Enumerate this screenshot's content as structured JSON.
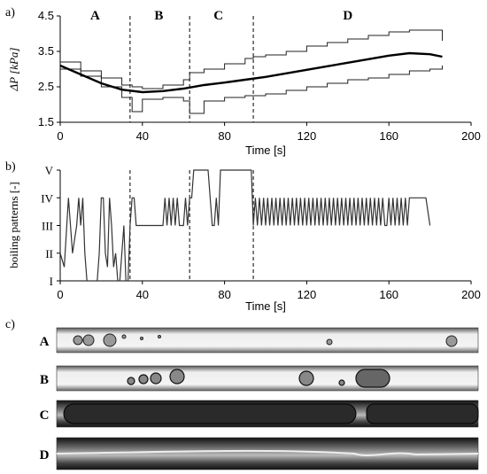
{
  "chart_data": [
    {
      "panel_label": "a)",
      "type": "line",
      "xlabel": "Time [s]",
      "ylabel": "ΔP [kPa]",
      "xlim": [
        0,
        200
      ],
      "ylim": [
        1.5,
        4.5
      ],
      "x_ticks": [
        "0",
        "40",
        "80",
        "120",
        "160",
        "200"
      ],
      "y_ticks": [
        "1.5",
        "2.5",
        "3.5",
        "4.5"
      ],
      "x_tick_values": [
        0,
        40,
        80,
        120,
        160,
        200
      ],
      "y_tick_values": [
        1.5,
        2.5,
        3.5,
        4.5
      ],
      "regions": [
        {
          "label": "A",
          "x_center": 17
        },
        {
          "label": "B",
          "x_center": 48
        },
        {
          "label": "C",
          "x_center": 77
        },
        {
          "label": "D",
          "x_center": 140
        }
      ],
      "boundaries": [
        34,
        63,
        94
      ],
      "mean": {
        "x": [
          0,
          10,
          20,
          30,
          40,
          50,
          60,
          70,
          80,
          90,
          100,
          110,
          120,
          130,
          140,
          150,
          160,
          170,
          180,
          186
        ],
        "y": [
          3.1,
          2.85,
          2.6,
          2.42,
          2.35,
          2.38,
          2.45,
          2.55,
          2.62,
          2.7,
          2.78,
          2.88,
          2.98,
          3.08,
          3.18,
          3.28,
          3.38,
          3.45,
          3.42,
          3.35
        ]
      },
      "upper_envelope": {
        "x": [
          0,
          10,
          20,
          30,
          35,
          40,
          50,
          60,
          63,
          70,
          80,
          90,
          94,
          100,
          110,
          120,
          130,
          140,
          150,
          160,
          170,
          180,
          186
        ],
        "y": [
          3.2,
          2.95,
          2.75,
          2.55,
          2.5,
          2.45,
          2.55,
          2.7,
          2.9,
          3.0,
          3.15,
          3.3,
          3.35,
          3.4,
          3.5,
          3.65,
          3.75,
          3.85,
          3.95,
          4.05,
          4.1,
          4.1,
          3.8
        ]
      },
      "lower_envelope": {
        "x": [
          0,
          10,
          20,
          30,
          35,
          40,
          50,
          60,
          63,
          70,
          80,
          90,
          94,
          100,
          110,
          120,
          130,
          140,
          150,
          160,
          170,
          180,
          186
        ],
        "y": [
          3.0,
          2.8,
          2.5,
          2.2,
          1.8,
          2.15,
          2.2,
          2.1,
          1.75,
          2.1,
          2.2,
          2.25,
          2.25,
          2.3,
          2.4,
          2.5,
          2.6,
          2.7,
          2.75,
          2.85,
          2.95,
          3.0,
          3.1
        ]
      }
    },
    {
      "panel_label": "b)",
      "type": "line",
      "xlabel": "Time [s]",
      "ylabel": "boiling patterns [-]",
      "xlim": [
        0,
        200
      ],
      "ylim": [
        1,
        5
      ],
      "x_ticks": [
        "0",
        "40",
        "80",
        "120",
        "160",
        "200"
      ],
      "x_tick_values": [
        0,
        40,
        80,
        120,
        160,
        200
      ],
      "y_ticks": [
        "I",
        "II",
        "III",
        "IV",
        "V"
      ],
      "y_tick_values": [
        1,
        2,
        3,
        4,
        5
      ],
      "boundaries": [
        34,
        63,
        94
      ],
      "series": [
        {
          "x": [
            0,
            2,
            4,
            6,
            8,
            9,
            10,
            11,
            12,
            13,
            14,
            16,
            18,
            19,
            20,
            21,
            22,
            23,
            24,
            25,
            26,
            27,
            28,
            29,
            30,
            31,
            32,
            33,
            34,
            35,
            36,
            37,
            38,
            39,
            40,
            42,
            44,
            46,
            48,
            50,
            51,
            52,
            53,
            54,
            55,
            56,
            57,
            58,
            59,
            60,
            61,
            62,
            63,
            64,
            65,
            66,
            70,
            72,
            74,
            75,
            76,
            77,
            78,
            79,
            80,
            82,
            86,
            90,
            91,
            92,
            93,
            94,
            95,
            96,
            97,
            98,
            99,
            100,
            101,
            102,
            103,
            104,
            105,
            106,
            107,
            108,
            109,
            110,
            111,
            112,
            113,
            114,
            115,
            116,
            117,
            118,
            119,
            120,
            121,
            122,
            123,
            124,
            125,
            126,
            127,
            128,
            129,
            130,
            131,
            132,
            133,
            134,
            135,
            136,
            137,
            138,
            139,
            140,
            141,
            142,
            143,
            144,
            145,
            146,
            147,
            148,
            149,
            150,
            151,
            152,
            153,
            154,
            155,
            156,
            157,
            158,
            159,
            160,
            161,
            162,
            163,
            164,
            165,
            166,
            167,
            168,
            169,
            170,
            172,
            174,
            176,
            178,
            180
          ],
          "y": [
            2,
            1.5,
            4,
            2,
            3,
            4,
            3,
            4,
            2,
            1,
            1,
            1,
            1,
            2,
            4,
            4,
            2,
            1.5,
            4,
            3,
            1.5,
            2,
            1,
            1,
            2,
            3,
            1,
            1,
            3,
            4,
            4,
            3,
            3,
            3,
            3,
            3,
            3,
            3,
            3,
            3,
            4,
            3,
            4,
            3,
            4,
            3,
            4,
            3,
            3,
            3,
            4,
            3,
            4,
            4,
            5,
            5,
            5,
            5,
            3,
            3,
            4,
            3,
            5,
            5,
            5,
            5,
            5,
            5,
            5,
            5,
            5,
            3,
            4,
            3,
            4,
            3,
            4,
            3,
            4,
            3,
            4,
            3,
            4,
            3,
            4,
            3,
            4,
            3,
            4,
            3,
            4,
            3,
            4,
            3,
            4,
            3,
            4,
            3,
            4,
            3,
            4,
            3,
            4,
            3,
            4,
            3,
            4,
            3,
            4,
            3,
            4,
            3,
            4,
            3,
            4,
            3,
            4,
            3,
            4,
            3,
            4,
            3,
            4,
            3,
            4,
            3,
            4,
            3,
            4,
            3,
            4,
            3,
            4,
            3,
            4,
            3,
            3,
            4,
            3,
            4,
            3,
            4,
            3,
            4,
            3,
            4,
            3,
            4,
            4,
            4,
            4,
            4,
            3
          ]
        }
      ]
    }
  ],
  "photos": {
    "panel_label": "c)",
    "strips": [
      {
        "label": "A"
      },
      {
        "label": "B"
      },
      {
        "label": "C"
      },
      {
        "label": "D"
      }
    ]
  }
}
